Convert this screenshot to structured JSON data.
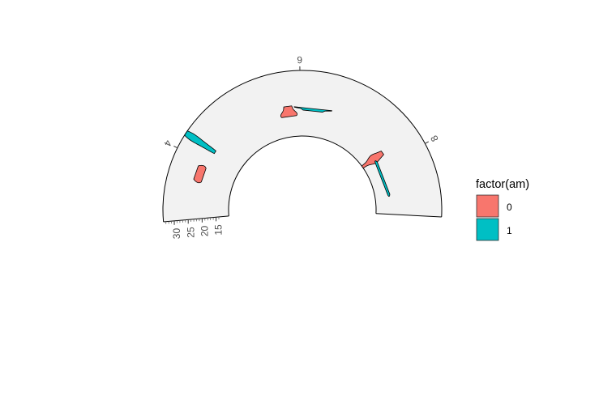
{
  "chart_data": {
    "type": "violin",
    "coord": "polar (half donut)",
    "x_variable": "cyl",
    "y_variable": "mpg",
    "fill_variable": "am",
    "theta_ticks": [
      "4",
      "6",
      "8"
    ],
    "r_ticks": [
      "30",
      "25",
      "20",
      "15"
    ],
    "ylim": [
      10.4,
      33.9
    ],
    "legend": {
      "title": "factor(am)",
      "position": "right",
      "entries": [
        {
          "label": "0",
          "color": "#F8766D"
        },
        {
          "label": "1",
          "color": "#00BFC4"
        }
      ]
    },
    "series": [
      {
        "cyl": 4,
        "am": "0",
        "mpg": [
          21.5,
          22.8,
          24.4
        ]
      },
      {
        "cyl": 4,
        "am": "1",
        "mpg": [
          21.4,
          22.8,
          26.0,
          27.3,
          30.4,
          30.4,
          32.4,
          33.9
        ]
      },
      {
        "cyl": 6,
        "am": "0",
        "mpg": [
          17.8,
          18.1,
          19.2,
          21.4
        ]
      },
      {
        "cyl": 6,
        "am": "1",
        "mpg": [
          19.7,
          21.0,
          21.0
        ]
      },
      {
        "cyl": 8,
        "am": "0",
        "mpg": [
          10.4,
          10.4,
          13.3,
          14.3,
          14.7,
          15.2,
          15.2,
          15.5,
          16.4,
          17.3,
          18.7,
          19.2
        ]
      },
      {
        "cyl": 8,
        "am": "1",
        "mpg": [
          15.0,
          15.8
        ]
      }
    ]
  }
}
